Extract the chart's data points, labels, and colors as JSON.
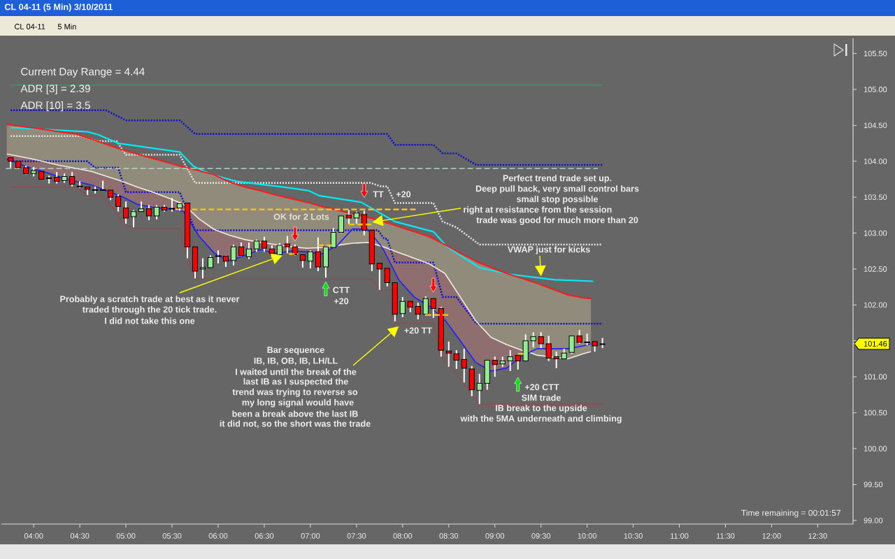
{
  "chart_data": {
    "type": "candlestick",
    "title": "CL 04-11 (5 Min)  3/10/2011",
    "x": [
      "2011-03-10T03:45",
      "2011-03-10T03:50",
      "2011-03-10T03:55",
      "2011-03-10T04:00",
      "2011-03-10T04:05",
      "2011-03-10T04:10",
      "2011-03-10T04:15",
      "2011-03-10T04:20",
      "2011-03-10T04:25",
      "2011-03-10T04:30",
      "2011-03-10T04:35",
      "2011-03-10T04:40",
      "2011-03-10T04:45",
      "2011-03-10T04:50",
      "2011-03-10T04:55",
      "2011-03-10T05:00",
      "2011-03-10T05:05",
      "2011-03-10T05:10",
      "2011-03-10T05:15",
      "2011-03-10T05:20",
      "2011-03-10T05:25",
      "2011-03-10T05:30",
      "2011-03-10T05:35",
      "2011-03-10T05:40",
      "2011-03-10T05:45",
      "2011-03-10T05:50",
      "2011-03-10T05:55",
      "2011-03-10T06:00",
      "2011-03-10T06:05",
      "2011-03-10T06:10",
      "2011-03-10T06:15",
      "2011-03-10T06:20",
      "2011-03-10T06:25",
      "2011-03-10T06:30",
      "2011-03-10T06:35",
      "2011-03-10T06:40",
      "2011-03-10T06:45",
      "2011-03-10T06:50",
      "2011-03-10T06:55",
      "2011-03-10T07:00",
      "2011-03-10T07:05",
      "2011-03-10T07:10",
      "2011-03-10T07:15",
      "2011-03-10T07:20",
      "2011-03-10T07:25",
      "2011-03-10T07:30",
      "2011-03-10T07:35",
      "2011-03-10T07:40",
      "2011-03-10T07:45",
      "2011-03-10T07:50",
      "2011-03-10T07:55",
      "2011-03-10T08:00",
      "2011-03-10T08:05",
      "2011-03-10T08:10",
      "2011-03-10T08:15",
      "2011-03-10T08:20",
      "2011-03-10T08:25",
      "2011-03-10T08:30",
      "2011-03-10T08:35",
      "2011-03-10T08:40",
      "2011-03-10T08:45",
      "2011-03-10T08:50",
      "2011-03-10T08:55",
      "2011-03-10T09:00",
      "2011-03-10T09:05",
      "2011-03-10T09:10",
      "2011-03-10T09:15",
      "2011-03-10T09:20",
      "2011-03-10T09:25",
      "2011-03-10T09:30",
      "2011-03-10T09:35",
      "2011-03-10T09:40",
      "2011-03-10T09:45",
      "2011-03-10T09:50",
      "2011-03-10T09:55",
      "2011-03-10T10:00",
      "2011-03-10T10:05",
      "2011-03-10T10:10"
    ],
    "ohlc": [
      [
        104.05,
        104.05,
        103.91,
        104.0
      ],
      [
        104.0,
        104.01,
        103.9,
        103.91
      ],
      [
        103.91,
        103.94,
        103.82,
        103.83
      ],
      [
        103.83,
        103.92,
        103.79,
        103.87
      ],
      [
        103.86,
        103.86,
        103.75,
        103.75
      ],
      [
        103.76,
        103.8,
        103.69,
        103.77
      ],
      [
        103.78,
        103.85,
        103.69,
        103.72
      ],
      [
        103.73,
        103.83,
        103.7,
        103.79
      ],
      [
        103.79,
        103.85,
        103.65,
        103.68
      ],
      [
        103.65,
        103.72,
        103.63,
        103.65
      ],
      [
        103.64,
        103.64,
        103.53,
        103.61
      ],
      [
        103.6,
        103.65,
        103.55,
        103.6
      ],
      [
        103.6,
        103.73,
        103.6,
        103.6
      ],
      [
        103.6,
        103.6,
        103.46,
        103.5
      ],
      [
        103.51,
        103.54,
        103.3,
        103.37
      ],
      [
        103.35,
        103.44,
        103.13,
        103.21
      ],
      [
        103.23,
        103.32,
        103.08,
        103.3
      ],
      [
        103.3,
        103.44,
        103.3,
        103.34
      ],
      [
        103.34,
        103.39,
        103.18,
        103.24
      ],
      [
        103.24,
        103.39,
        103.19,
        103.36
      ],
      [
        103.36,
        103.39,
        103.3,
        103.32
      ],
      [
        103.34,
        103.49,
        103.3,
        103.34
      ],
      [
        103.35,
        103.43,
        103.31,
        103.41
      ],
      [
        103.42,
        103.42,
        102.65,
        102.81
      ],
      [
        102.81,
        102.81,
        102.37,
        102.47
      ],
      [
        102.5,
        102.65,
        102.37,
        102.52
      ],
      [
        102.52,
        102.69,
        102.52,
        102.66
      ],
      [
        102.68,
        102.76,
        102.58,
        102.68
      ],
      [
        102.68,
        102.69,
        102.53,
        102.61
      ],
      [
        102.62,
        102.84,
        102.55,
        102.81
      ],
      [
        102.81,
        102.87,
        102.68,
        102.69
      ],
      [
        102.67,
        102.87,
        102.64,
        102.78
      ],
      [
        102.78,
        102.91,
        102.74,
        102.89
      ],
      [
        102.89,
        102.95,
        102.74,
        102.79
      ],
      [
        102.78,
        102.83,
        102.66,
        102.72
      ],
      [
        102.7,
        102.86,
        102.7,
        102.83
      ],
      [
        102.85,
        102.96,
        102.72,
        102.81
      ],
      [
        102.81,
        102.84,
        102.69,
        102.7
      ],
      [
        102.7,
        102.7,
        102.52,
        102.62
      ],
      [
        102.61,
        102.76,
        102.51,
        102.74
      ],
      [
        102.74,
        102.94,
        102.47,
        102.53
      ],
      [
        102.53,
        102.81,
        102.38,
        102.81
      ],
      [
        102.8,
        103.07,
        102.8,
        103.01
      ],
      [
        103.01,
        103.24,
        103.0,
        103.24
      ],
      [
        103.25,
        103.32,
        103.13,
        103.21
      ],
      [
        103.21,
        103.3,
        103.13,
        103.28
      ],
      [
        103.26,
        103.31,
        102.97,
        103.04
      ],
      [
        103.04,
        103.04,
        102.47,
        102.57
      ],
      [
        102.58,
        102.58,
        102.21,
        102.5
      ],
      [
        102.51,
        102.51,
        102.26,
        102.31
      ],
      [
        102.31,
        102.31,
        101.77,
        101.87
      ],
      [
        101.88,
        102.11,
        101.83,
        102.05
      ],
      [
        102.05,
        102.05,
        101.9,
        101.97
      ],
      [
        101.98,
        102.03,
        101.8,
        101.87
      ],
      [
        101.87,
        102.12,
        101.85,
        102.09
      ],
      [
        102.09,
        102.09,
        101.82,
        101.95
      ],
      [
        101.95,
        101.97,
        101.28,
        101.37
      ],
      [
        101.36,
        101.49,
        101.14,
        101.33
      ],
      [
        101.32,
        101.37,
        101.11,
        101.23
      ],
      [
        101.24,
        101.39,
        100.92,
        101.12
      ],
      [
        101.11,
        101.15,
        100.73,
        100.82
      ],
      [
        100.81,
        101.04,
        100.62,
        100.91
      ],
      [
        100.91,
        101.23,
        100.82,
        101.23
      ],
      [
        101.23,
        101.28,
        101.0,
        101.17
      ],
      [
        101.18,
        101.28,
        101.14,
        101.22
      ],
      [
        101.22,
        101.37,
        101.08,
        101.28
      ],
      [
        101.3,
        101.3,
        101.1,
        101.22
      ],
      [
        101.22,
        101.59,
        101.22,
        101.5
      ],
      [
        101.5,
        101.62,
        101.41,
        101.56
      ],
      [
        101.56,
        101.62,
        101.4,
        101.46
      ],
      [
        101.46,
        101.57,
        101.22,
        101.26
      ],
      [
        101.28,
        101.35,
        101.12,
        101.25
      ],
      [
        101.25,
        101.39,
        101.25,
        101.33
      ],
      [
        101.34,
        101.57,
        101.32,
        101.57
      ],
      [
        101.57,
        101.65,
        101.46,
        101.48
      ],
      [
        101.48,
        101.6,
        101.44,
        101.48
      ],
      [
        101.49,
        101.49,
        101.35,
        101.43
      ],
      [
        101.45,
        101.54,
        101.4,
        101.46
      ]
    ],
    "colors": [
      "#ff0000",
      "#ff0000",
      "#ff0000",
      "#90ee90",
      "#ff0000",
      "#90ee90",
      "#ff0000",
      "#90ee90",
      "#ff0000",
      "#000000",
      "#ff0000",
      "#000000",
      "#000000",
      "#ff0000",
      "#ff0000",
      "#ff0000",
      "#90ee90",
      "#90ee90",
      "#ff0000",
      "#90ee90",
      "#ff0000",
      "#000000",
      "#90ee90",
      "#ff0000",
      "#ff0000",
      "#90ee90",
      "#90ee90",
      "#000000",
      "#ff0000",
      "#90ee90",
      "#ff0000",
      "#90ee90",
      "#90ee90",
      "#ff0000",
      "#ff0000",
      "#90ee90",
      "#ff0000",
      "#ff0000",
      "#ff0000",
      "#90ee90",
      "#ff0000",
      "#90ee90",
      "#90ee90",
      "#90ee90",
      "#ff0000",
      "#90ee90",
      "#ff0000",
      "#ff0000",
      "#ff0000",
      "#ff0000",
      "#ff0000",
      "#90ee90",
      "#ff0000",
      "#ff0000",
      "#90ee90",
      "#ff0000",
      "#ff0000",
      "#ff0000",
      "#ff0000",
      "#ff0000",
      "#ff0000",
      "#90ee90",
      "#90ee90",
      "#ff0000",
      "#90ee90",
      "#90ee90",
      "#ff0000",
      "#90ee90",
      "#90ee90",
      "#ff0000",
      "#ff0000",
      "#ff0000",
      "#90ee90",
      "#90ee90",
      "#ff0000",
      "#000000",
      "#ff0000",
      "#90ee90"
    ],
    "xlim": [
      "2011-03-10T03:39",
      "2011-03-10T12:53"
    ],
    "xticks": [
      {
        "value": "2011-03-10T04:00",
        "label": "04:00"
      },
      {
        "value": "2011-03-10T04:30",
        "label": "04:30"
      },
      {
        "value": "2011-03-10T05:00",
        "label": "05:00"
      },
      {
        "value": "2011-03-10T05:30",
        "label": "05:30"
      },
      {
        "value": "2011-03-10T06:00",
        "label": "06:00"
      },
      {
        "value": "2011-03-10T06:30",
        "label": "06:30"
      },
      {
        "value": "2011-03-10T07:00",
        "label": "07:00"
      },
      {
        "value": "2011-03-10T07:30",
        "label": "07:30"
      },
      {
        "value": "2011-03-10T08:00",
        "label": "08:00"
      },
      {
        "value": "2011-03-10T08:30",
        "label": "08:30"
      },
      {
        "value": "2011-03-10T09:00",
        "label": "09:00"
      },
      {
        "value": "2011-03-10T09:30",
        "label": "09:30"
      },
      {
        "value": "2011-03-10T10:00",
        "label": "10:00"
      },
      {
        "value": "2011-03-10T10:30",
        "label": "10:30"
      },
      {
        "value": "2011-03-10T11:00",
        "label": "11:00"
      },
      {
        "value": "2011-03-10T11:30",
        "label": "11:30"
      },
      {
        "value": "2011-03-10T12:00",
        "label": "12:00"
      },
      {
        "value": "2011-03-10T12:30",
        "label": "12:30"
      }
    ],
    "ylim": [
      98.95,
      105.71
    ],
    "yticks": [
      {
        "value": 99.0,
        "label": "99.00"
      },
      {
        "value": 99.5,
        "label": "99.50"
      },
      {
        "value": 100.0,
        "label": "100.00"
      },
      {
        "value": 100.5,
        "label": "100.50"
      },
      {
        "value": 101.0,
        "label": "101.00"
      },
      {
        "value": 101.5,
        "label": null
      },
      {
        "value": 102.0,
        "label": "102.00"
      },
      {
        "value": 102.5,
        "label": "102.50"
      },
      {
        "value": 103.0,
        "label": "103.00"
      },
      {
        "value": 103.5,
        "label": "103.50"
      },
      {
        "value": 104.0,
        "label": "104.00"
      },
      {
        "value": 104.5,
        "label": "104.50"
      },
      {
        "value": 105.0,
        "label": "105.00"
      },
      {
        "value": 105.5,
        "label": "105.50"
      },
      {
        "value": 101.46,
        "label": "101.46"
      }
    ],
    "series": [
      {
        "type": "line",
        "color": "#0a0ad2",
        "line_style": "dotted",
        "x": [
          "2011-03-10T03:45",
          "2011-03-10T04:47",
          "2011-03-10T05:00",
          "2011-03-10T05:35",
          "2011-03-10T05:45",
          "2011-03-10T07:50",
          "2011-03-10T07:55",
          "2011-03-10T08:20",
          "2011-03-10T08:26",
          "2011-03-10T08:35",
          "2011-03-10T08:48",
          "2011-03-10T10:10"
        ],
        "values": [
          104.71,
          104.71,
          104.57,
          104.57,
          104.38,
          104.38,
          104.23,
          104.23,
          104.11,
          104.11,
          103.95,
          103.95
        ]
      },
      {
        "type": "line",
        "color": "#0a0ad2",
        "line_style": "dotted",
        "x": [
          "2011-03-10T03:45",
          "2011-03-10T04:35",
          "2011-03-10T04:40",
          "2011-03-10T04:55",
          "2011-03-10T05:00",
          "2011-03-10T05:35",
          "2011-03-10T05:45",
          "2011-03-10T07:44",
          "2011-03-10T07:48",
          "2011-03-10T07:50",
          "2011-03-10T07:55",
          "2011-03-10T08:20",
          "2011-03-10T08:26",
          "2011-03-10T08:35",
          "2011-03-10T08:48",
          "2011-03-10T10:10"
        ],
        "values": [
          104.0,
          104.0,
          103.91,
          103.91,
          103.57,
          103.57,
          103.04,
          103.04,
          102.92,
          102.92,
          102.59,
          102.59,
          102.11,
          102.11,
          101.74,
          101.74
        ]
      },
      {
        "type": "line",
        "color": "#e6e6e6",
        "line_style": "dotted",
        "x": [
          "2011-03-10T03:45",
          "2011-03-10T04:31",
          "2011-03-10T04:42",
          "2011-03-10T04:54",
          "2011-03-10T05:00",
          "2011-03-10T05:35",
          "2011-03-10T05:45",
          "2011-03-10T07:39",
          "2011-03-10T07:46",
          "2011-03-10T07:50",
          "2011-03-10T07:55",
          "2011-03-10T08:20",
          "2011-03-10T08:26",
          "2011-03-10T08:35",
          "2011-03-10T08:50",
          "2011-03-10T10:10"
        ],
        "values": [
          104.35,
          104.35,
          104.28,
          104.28,
          104.09,
          104.09,
          103.7,
          103.7,
          103.65,
          103.65,
          103.42,
          103.42,
          103.16,
          103.08,
          102.84,
          102.84
        ]
      },
      {
        "type": "line",
        "color": "#00ebf5",
        "x": [
          "2011-03-10T03:45",
          "2011-03-10T04:35",
          "2011-03-10T04:42",
          "2011-03-10T04:55",
          "2011-03-10T05:35",
          "2011-03-10T05:44",
          "2011-03-10T05:55",
          "2011-03-10T06:12",
          "2011-03-10T06:43",
          "2011-03-10T06:59",
          "2011-03-10T07:06",
          "2011-03-10T07:33",
          "2011-03-10T07:55",
          "2011-03-10T08:20",
          "2011-03-10T08:29",
          "2011-03-10T08:50",
          "2011-03-10T09:09",
          "2011-03-10T09:39",
          "2011-03-10T10:04"
        ],
        "values": [
          104.47,
          104.41,
          104.37,
          104.25,
          104.13,
          103.93,
          103.82,
          103.72,
          103.64,
          103.59,
          103.52,
          103.43,
          103.16,
          103.02,
          102.81,
          102.52,
          102.43,
          102.35,
          102.33
        ]
      },
      {
        "type": "line",
        "color": "#f3ebe6",
        "x": [
          "2011-03-10T03:42:30",
          "2011-03-10T03:47:30",
          "2011-03-10T03:57:30",
          "2011-03-10T04:07:30",
          "2011-03-10T04:17:30",
          "2011-03-10T04:27:30",
          "2011-03-10T04:37:30",
          "2011-03-10T04:57:30",
          "2011-03-10T05:07:30",
          "2011-03-10T05:17:30",
          "2011-03-10T05:27:30",
          "2011-03-10T05:37:30",
          "2011-03-10T05:47:30",
          "2011-03-10T05:57:30",
          "2011-03-10T06:07:30",
          "2011-03-10T06:17:30",
          "2011-03-10T06:27:30",
          "2011-03-10T06:37:30",
          "2011-03-10T06:47:30",
          "2011-03-10T06:57:30",
          "2011-03-10T07:07:30",
          "2011-03-10T07:17:30",
          "2011-03-10T07:27:30",
          "2011-03-10T07:37:30",
          "2011-03-10T07:46",
          "2011-03-10T07:47:30",
          "2011-03-10T07:57:30",
          "2011-03-10T08:07:30",
          "2011-03-10T08:17:30",
          "2011-03-10T08:27:30",
          "2011-03-10T08:37:30",
          "2011-03-10T08:47:30",
          "2011-03-10T08:57:30",
          "2011-03-10T09:07:30",
          "2011-03-10T09:17:30",
          "2011-03-10T09:22:30",
          "2011-03-10T09:27:30",
          "2011-03-10T09:47:30",
          "2011-03-10T09:57:30",
          "2011-03-10T10:02:30"
        ],
        "values": [
          104.1,
          104.08,
          104.04,
          103.99,
          103.94,
          103.9,
          103.86,
          103.72,
          103.64,
          103.57,
          103.49,
          103.4,
          103.2,
          103.05,
          102.97,
          102.91,
          102.87,
          102.84,
          102.81,
          102.79,
          102.8,
          102.83,
          102.86,
          102.87,
          102.82,
          102.81,
          102.73,
          102.65,
          102.57,
          102.44,
          102.11,
          101.78,
          101.55,
          101.45,
          101.37,
          101.34,
          101.3,
          101.25,
          101.32,
          101.35
        ],
        "lower": [
          null,
          null,
          null,
          null,
          null,
          null,
          null,
          null,
          null,
          null,
          null,
          null,
          null,
          null,
          null,
          null,
          null,
          null,
          null,
          null,
          null,
          102.83,
          102.86,
          102.87,
          102.82,
          null,
          null,
          null,
          null,
          null,
          null,
          null,
          null,
          null,
          null,
          101.34,
          101.3,
          101.25,
          101.32,
          101.35
        ],
        "upper": [
          null,
          null,
          null,
          null,
          null,
          null,
          null,
          null,
          null,
          null,
          null,
          null,
          null,
          null,
          null,
          null,
          null,
          null,
          null,
          null,
          null,
          102.83,
          103.06,
          103.05,
          102.82,
          null,
          null,
          null,
          null,
          null,
          null,
          null,
          null,
          null,
          null,
          101.34,
          101.39,
          101.39,
          101.43,
          101.46
        ]
      },
      {
        "type": "line",
        "color": "#ff1a1a",
        "x": [
          "2011-03-10T03:42:30",
          "2011-03-10T03:47:30",
          "2011-03-10T03:57:30",
          "2011-03-10T04:07:30",
          "2011-03-10T04:17:30",
          "2011-03-10T04:27:30",
          "2011-03-10T04:37:30",
          "2011-03-10T04:57:30",
          "2011-03-10T05:07:30",
          "2011-03-10T05:17:30",
          "2011-03-10T05:27:30",
          "2011-03-10T05:37:30",
          "2011-03-10T05:47:30",
          "2011-03-10T05:57:30",
          "2011-03-10T06:07:30",
          "2011-03-10T06:17:30",
          "2011-03-10T06:27:30",
          "2011-03-10T06:37:30",
          "2011-03-10T06:47:30",
          "2011-03-10T06:57:30",
          "2011-03-10T07:07:30",
          "2011-03-10T07:17:30",
          "2011-03-10T07:27:30",
          "2011-03-10T07:37:30",
          "2011-03-10T07:47:30",
          "2011-03-10T07:57:30",
          "2011-03-10T08:07:30",
          "2011-03-10T08:17:30",
          "2011-03-10T08:27:30",
          "2011-03-10T08:37:30",
          "2011-03-10T08:47:30",
          "2011-03-10T08:57:30",
          "2011-03-10T09:07:30",
          "2011-03-10T09:17:30",
          "2011-03-10T09:27:30",
          "2011-03-10T09:47:30",
          "2011-03-10T09:57:30",
          "2011-03-10T10:02:30"
        ],
        "values": [
          104.51,
          104.5,
          104.47,
          104.44,
          104.41,
          104.38,
          104.31,
          104.16,
          104.1,
          104.04,
          103.98,
          103.92,
          103.87,
          103.81,
          103.71,
          103.64,
          103.59,
          103.53,
          103.48,
          103.43,
          103.37,
          103.32,
          103.27,
          103.22,
          103.16,
          103.09,
          103.02,
          102.95,
          102.84,
          102.72,
          102.61,
          102.52,
          102.44,
          102.37,
          102.3,
          102.14,
          102.1,
          102.09
        ],
        "lower": [
          104.1,
          104.08,
          104.04,
          103.99,
          103.94,
          103.9,
          103.86,
          103.72,
          103.64,
          103.57,
          103.49,
          103.4,
          103.2,
          103.05,
          102.97,
          102.91,
          102.87,
          102.84,
          102.81,
          102.79,
          102.8,
          102.83,
          102.86,
          102.87,
          102.81,
          102.73,
          102.65,
          102.57,
          102.44,
          102.11,
          101.78,
          101.55,
          101.45,
          101.37,
          101.3,
          101.25,
          101.32,
          101.35
        ],
        "upper": [
          104.51,
          104.5,
          104.47,
          104.44,
          104.41,
          104.38,
          104.31,
          104.16,
          104.1,
          104.04,
          103.98,
          103.92,
          103.87,
          103.81,
          103.71,
          103.64,
          103.59,
          103.53,
          103.48,
          103.43,
          103.37,
          103.32,
          103.27,
          103.22,
          103.16,
          103.09,
          103.02,
          102.95,
          102.84,
          102.72,
          102.61,
          102.52,
          102.44,
          102.37,
          102.3,
          102.14,
          102.1,
          102.09
        ]
      },
      {
        "type": "line",
        "color": "#1f1fff",
        "x": [
          "2011-03-10T03:42:30",
          "2011-03-10T03:47:30",
          "2011-03-10T03:57:30",
          "2011-03-10T04:07:30",
          "2011-03-10T04:17:30",
          "2011-03-10T04:27:30",
          "2011-03-10T04:37:30",
          "2011-03-10T04:57:30",
          "2011-03-10T05:07:30",
          "2011-03-10T05:17:30",
          "2011-03-10T05:27:30",
          "2011-03-10T05:37:30",
          "2011-03-10T05:47:30",
          "2011-03-10T05:57:30",
          "2011-03-10T06:07:30",
          "2011-03-10T06:17:30",
          "2011-03-10T06:27:30",
          "2011-03-10T06:37:30",
          "2011-03-10T06:47:30",
          "2011-03-10T06:57:30",
          "2011-03-10T07:07:30",
          "2011-03-10T07:17:30",
          "2011-03-10T07:27:30",
          "2011-03-10T07:37:30",
          "2011-03-10T07:46",
          "2011-03-10T07:47:30",
          "2011-03-10T07:57:30",
          "2011-03-10T08:07:30",
          "2011-03-10T08:17:30",
          "2011-03-10T08:27:30",
          "2011-03-10T08:37:30",
          "2011-03-10T08:47:30",
          "2011-03-10T08:57:30",
          "2011-03-10T09:07:30",
          "2011-03-10T09:17:30",
          "2011-03-10T09:22:30",
          "2011-03-10T09:27:30",
          "2011-03-10T09:47:30",
          "2011-03-10T09:57:30",
          "2011-03-10T10:02:30"
        ],
        "values": [
          104.03,
          103.99,
          103.91,
          103.85,
          103.78,
          103.72,
          103.67,
          103.51,
          103.4,
          103.36,
          103.34,
          103.3,
          102.96,
          102.72,
          102.62,
          102.69,
          102.77,
          102.72,
          102.75,
          102.74,
          102.71,
          102.83,
          103.06,
          103.05,
          102.82,
          102.77,
          102.35,
          102.11,
          101.98,
          101.79,
          101.5,
          101.2,
          101.08,
          101.12,
          101.29,
          101.34,
          101.39,
          101.39,
          101.43,
          101.46
        ],
        "lower": [
          104.03,
          103.99,
          103.91,
          103.85,
          103.78,
          103.72,
          103.67,
          103.51,
          103.4,
          103.36,
          103.34,
          103.3,
          102.96,
          102.72,
          102.62,
          102.69,
          102.77,
          102.72,
          102.75,
          102.74,
          102.71,
          102.83,
          null,
          null,
          102.82,
          102.77,
          102.35,
          102.11,
          101.98,
          101.79,
          101.5,
          101.2,
          101.08,
          101.12,
          101.29,
          101.34,
          null,
          null,
          null,
          null
        ],
        "upper": [
          104.1,
          104.08,
          104.04,
          103.99,
          103.94,
          103.9,
          103.86,
          103.72,
          103.64,
          103.57,
          103.49,
          103.4,
          103.2,
          103.05,
          102.97,
          102.91,
          102.87,
          102.84,
          102.81,
          102.79,
          102.8,
          102.83,
          null,
          null,
          102.82,
          102.81,
          102.73,
          102.65,
          102.57,
          102.44,
          102.11,
          101.78,
          101.55,
          101.45,
          101.37,
          101.34,
          null,
          null,
          null,
          null
        ]
      },
      {
        "type": "line",
        "color": "#dc2020",
        "line_style": "dotted",
        "x": [
          "2011-03-10T03:45",
          "2011-03-10T04:28",
          "2011-03-10T04:35",
          "2011-03-10T04:45",
          "2011-03-10T05:00",
          "2011-03-10T05:05",
          "2011-03-10T05:35",
          "2011-03-10T05:37",
          "2011-03-10T05:45",
          "2011-03-10T07:40",
          "2011-03-10T07:45",
          "2011-03-10T07:53",
          "2011-03-10T07:55",
          "2011-03-10T08:20",
          "2011-03-10T08:24",
          "2011-03-10T08:31",
          "2011-03-10T08:37",
          "2011-03-10T08:44",
          "2011-03-10T08:50",
          "2011-03-10T10:10"
        ],
        "values": [
          103.64,
          103.64,
          103.52,
          103.52,
          103.12,
          103.07,
          103.07,
          102.84,
          102.36,
          102.36,
          102.21,
          102.21,
          101.75,
          101.75,
          101.31,
          101.14,
          100.99,
          100.77,
          100.62,
          100.62
        ]
      },
      {
        "type": "line",
        "color": "#22b060",
        "x": [
          "2011-03-10T03:45",
          "2011-03-10T10:10"
        ],
        "values": [
          105.06,
          105.06
        ]
      },
      {
        "type": "line",
        "color": "#b9e8d6",
        "line_style": "dashed",
        "x": [
          "2011-03-10T03:42",
          "2011-03-10T10:07"
        ],
        "values": [
          103.9,
          103.9
        ]
      },
      {
        "type": "line",
        "color": "#f8c400",
        "line_style": "dashed",
        "x": [
          "2011-03-10T05:32",
          "2011-03-10T08:10"
        ],
        "values": [
          103.33,
          103.33
        ]
      },
      {
        "type": "line",
        "color": "#f8c400",
        "line_style": "dashed",
        "x": [
          "2011-03-10T06:46",
          "2011-03-10T06:52"
        ],
        "values": [
          102.71,
          102.71
        ]
      },
      {
        "type": "line",
        "color": "#f8c400",
        "line_style": "dashed",
        "x": [
          "2011-03-10T07:05",
          "2011-03-10T07:16"
        ],
        "values": [
          102.83,
          102.83
        ]
      },
      {
        "type": "line",
        "color": "#f8c400",
        "line_style": "dashed",
        "x": [
          "2011-03-10T07:25",
          "2011-03-10T07:40"
        ],
        "values": [
          103.12,
          103.12
        ]
      },
      {
        "type": "line",
        "color": "#f8c400",
        "line_style": "dashed",
        "x": [
          "2011-03-10T08:15",
          "2011-03-10T08:31"
        ],
        "values": [
          101.86,
          101.86
        ]
      },
      {
        "type": "line",
        "color": "#f8c400",
        "line_style": "dashed",
        "x": [
          "2011-03-10T09:15",
          "2011-03-10T09:20"
        ],
        "values": [
          101.32,
          101.32
        ]
      }
    ],
    "annotations": [
      "Current Day Range = 4.44",
      "ADR [3] = 2.39",
      "ADR [10] = 3.5",
      "Perfect trend trade set up.",
      "Deep pull back, very small control bars",
      "small stop possible",
      "right at resistance from the session",
      "trade was good for much more than 20",
      {
        "text": "VWAP just for kicks",
        "x": "2011-03-10T09:30",
        "y": 102.4
      },
      "OK for 2 Lots",
      "TT",
      "+20",
      "Probably a scratch trade at best as it never",
      "traded through the  20 tick trade.",
      "I did not take this one",
      "CTT",
      "+20",
      "+20 TT",
      "Bar sequence",
      "IB, IB, OB, IB, LH/LL",
      "I waited until the break of the",
      "last IB as I suspected the",
      "trend was trying to reverse so",
      "my long signal would have",
      "been a break above the last IB",
      "it did not, so the short was the trade",
      "+20 CTT",
      "SIM trade",
      "IB break to the upside",
      "with the 5MA underneath and climbing",
      "Time remaining = 00:01:57",
      "CL 04-11",
      "5 Min"
    ]
  }
}
